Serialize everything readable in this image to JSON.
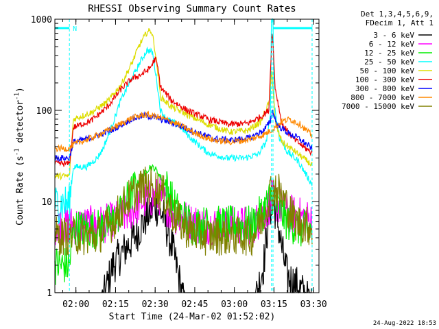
{
  "chart_data": {
    "type": "line",
    "title": "RHESSI Observing Summary Count Rates",
    "xlabel": "Start Time (24-Mar-02 01:52:02)",
    "ylabel_parts": [
      "Count Rate (s",
      "-1",
      " detector",
      "-1",
      ")"
    ],
    "y_scale": "log",
    "ylim": [
      1,
      1000
    ],
    "x_minutes_since_start_range": [
      0,
      100
    ],
    "x_ticks": [
      {
        "label": "02:00",
        "minute": 7.97
      },
      {
        "label": "02:15",
        "minute": 22.97
      },
      {
        "label": "02:30",
        "minute": 37.97
      },
      {
        "label": "02:45",
        "minute": 52.97
      },
      {
        "label": "03:00",
        "minute": 67.97
      },
      {
        "label": "03:15",
        "minute": 82.97
      },
      {
        "label": "03:30",
        "minute": 97.97
      }
    ],
    "y_ticks": [
      {
        "label": "1",
        "value": 1
      },
      {
        "label": "10",
        "value": 10
      },
      {
        "label": "100",
        "value": 100
      },
      {
        "label": "1000",
        "value": 1000
      }
    ],
    "legend_header": [
      "Det 1,3,4,5,6,9,",
      "FDecim 1, Att 1"
    ],
    "flag_label": "N",
    "flag_segments": [
      [
        0,
        5.5
      ],
      [
        82.5,
        97.5
      ]
    ],
    "dashed_verticals": [
      5.5,
      82.0,
      82.6,
      97.4
    ],
    "footer_timestamp": "24-Aug-2022 18:53",
    "series": [
      {
        "name": "3 - 6 keV",
        "color": "#000000",
        "points": [
          [
            0,
            0
          ],
          [
            5.5,
            0
          ],
          [
            16,
            0
          ],
          [
            22,
            2
          ],
          [
            30,
            4
          ],
          [
            35,
            7
          ],
          [
            38,
            9
          ],
          [
            41,
            7
          ],
          [
            44,
            3.5
          ],
          [
            46,
            2
          ],
          [
            50,
            0
          ],
          [
            74,
            0
          ],
          [
            79,
            2
          ],
          [
            81,
            7
          ],
          [
            82.5,
            10
          ],
          [
            84,
            7
          ],
          [
            86,
            3
          ],
          [
            88,
            1.5
          ],
          [
            93,
            1.1
          ],
          [
            97.4,
            0.7
          ]
        ]
      },
      {
        "name": "6 - 12 keV",
        "color": "#ff00ff",
        "points": [
          [
            0,
            5.5
          ],
          [
            5.5,
            5.5
          ],
          [
            16,
            5.5
          ],
          [
            22,
            6
          ],
          [
            28,
            7.5
          ],
          [
            33,
            10
          ],
          [
            37,
            11
          ],
          [
            40,
            11.5
          ],
          [
            44,
            7.5
          ],
          [
            48,
            6.5
          ],
          [
            55,
            5.5
          ],
          [
            75,
            5.5
          ],
          [
            79,
            7
          ],
          [
            82.2,
            10.5
          ],
          [
            84,
            9.5
          ],
          [
            88,
            7.5
          ],
          [
            93,
            6.8
          ],
          [
            97.5,
            6.2
          ]
        ]
      },
      {
        "name": "12 - 25 keV",
        "color": "#00ee00",
        "points": [
          [
            0,
            2
          ],
          [
            5.5,
            2
          ],
          [
            7,
            5
          ],
          [
            16,
            5
          ],
          [
            22,
            6
          ],
          [
            28,
            11
          ],
          [
            33,
            19
          ],
          [
            36,
            24
          ],
          [
            38,
            23
          ],
          [
            42,
            15
          ],
          [
            46,
            8
          ],
          [
            52,
            5.5
          ],
          [
            75,
            5.5
          ],
          [
            79,
            8
          ],
          [
            82.2,
            12
          ],
          [
            84,
            9
          ],
          [
            88,
            6
          ],
          [
            93,
            5
          ],
          [
            97.5,
            4.8
          ]
        ]
      },
      {
        "name": "25 - 50 keV",
        "color": "#00ffff",
        "points": [
          [
            0,
            9.5
          ],
          [
            5.5,
            9.5
          ],
          [
            7,
            24
          ],
          [
            12,
            24
          ],
          [
            16,
            30
          ],
          [
            18,
            37
          ],
          [
            21,
            60
          ],
          [
            25,
            130
          ],
          [
            29,
            220
          ],
          [
            33,
            370
          ],
          [
            35,
            460
          ],
          [
            37,
            430
          ],
          [
            38.5,
            220
          ],
          [
            40,
            100
          ],
          [
            42,
            82
          ],
          [
            47,
            68
          ],
          [
            52,
            48
          ],
          [
            58,
            34
          ],
          [
            65,
            30
          ],
          [
            72,
            30
          ],
          [
            77,
            33
          ],
          [
            80,
            45
          ],
          [
            81.6,
            85
          ],
          [
            82,
            1000
          ],
          [
            82.6,
            1000
          ],
          [
            83,
            120
          ],
          [
            85,
            50
          ],
          [
            88,
            35
          ],
          [
            92,
            28
          ],
          [
            96,
            18
          ],
          [
            97.5,
            15
          ]
        ]
      },
      {
        "name": "50 - 100 keV",
        "color": "#dddd00",
        "points": [
          [
            0,
            19
          ],
          [
            5.5,
            19
          ],
          [
            7,
            80
          ],
          [
            14,
            95
          ],
          [
            20,
            125
          ],
          [
            25,
            190
          ],
          [
            29,
            320
          ],
          [
            32,
            520
          ],
          [
            35,
            730
          ],
          [
            36.5,
            750
          ],
          [
            37.5,
            560
          ],
          [
            39,
            260
          ],
          [
            40,
            140
          ],
          [
            44,
            110
          ],
          [
            50,
            90
          ],
          [
            58,
            70
          ],
          [
            66,
            58
          ],
          [
            73,
            60
          ],
          [
            78,
            75
          ],
          [
            81,
            120
          ],
          [
            82.2,
            270
          ],
          [
            83.5,
            70
          ],
          [
            86,
            45
          ],
          [
            90,
            37
          ],
          [
            94,
            30
          ],
          [
            97.5,
            25
          ]
        ]
      },
      {
        "name": "100 - 300 keV",
        "color": "#ee0000",
        "points": [
          [
            0,
            26
          ],
          [
            5.5,
            26
          ],
          [
            7,
            65
          ],
          [
            14,
            78
          ],
          [
            20,
            110
          ],
          [
            25,
            170
          ],
          [
            29,
            220
          ],
          [
            33,
            250
          ],
          [
            36,
            290
          ],
          [
            38,
            370
          ],
          [
            39,
            290
          ],
          [
            40,
            180
          ],
          [
            44,
            130
          ],
          [
            50,
            100
          ],
          [
            58,
            80
          ],
          [
            66,
            70
          ],
          [
            73,
            72
          ],
          [
            78,
            85
          ],
          [
            81,
            100
          ],
          [
            82.3,
            780
          ],
          [
            83.4,
            180
          ],
          [
            86,
            70
          ],
          [
            90,
            50
          ],
          [
            94,
            40
          ],
          [
            97.5,
            34
          ]
        ]
      },
      {
        "name": "300 - 800 keV",
        "color": "#0000ff",
        "points": [
          [
            0,
            30
          ],
          [
            5.5,
            30
          ],
          [
            7,
            45
          ],
          [
            14,
            50
          ],
          [
            22,
            62
          ],
          [
            29,
            80
          ],
          [
            34,
            88
          ],
          [
            39,
            82
          ],
          [
            46,
            70
          ],
          [
            53,
            58
          ],
          [
            60,
            49
          ],
          [
            67,
            47
          ],
          [
            74,
            50
          ],
          [
            79,
            60
          ],
          [
            81.5,
            75
          ],
          [
            82.5,
            100
          ],
          [
            84,
            70
          ],
          [
            88,
            57
          ],
          [
            92,
            50
          ],
          [
            97.5,
            38
          ]
        ]
      },
      {
        "name": "800 - 7000 keV",
        "color": "#ff8800",
        "points": [
          [
            0,
            38
          ],
          [
            5.5,
            38
          ],
          [
            7,
            42
          ],
          [
            14,
            50
          ],
          [
            22,
            64
          ],
          [
            29,
            82
          ],
          [
            34,
            90
          ],
          [
            39,
            85
          ],
          [
            46,
            72
          ],
          [
            53,
            56
          ],
          [
            60,
            47
          ],
          [
            67,
            45
          ],
          [
            74,
            48
          ],
          [
            79,
            54
          ],
          [
            82.5,
            62
          ],
          [
            86,
            76
          ],
          [
            89,
            80
          ],
          [
            93,
            70
          ],
          [
            97.5,
            52
          ]
        ]
      },
      {
        "name": "7000 - 15000 keV",
        "color": "#808000",
        "points": [
          [
            0,
            4.2
          ],
          [
            5.5,
            4.2
          ],
          [
            16,
            4.2
          ],
          [
            22,
            6
          ],
          [
            27,
            10
          ],
          [
            33,
            14.5
          ],
          [
            37,
            15
          ],
          [
            41,
            12
          ],
          [
            45,
            7
          ],
          [
            50,
            5
          ],
          [
            56,
            4.2
          ],
          [
            75,
            4.2
          ],
          [
            79,
            7
          ],
          [
            82,
            14
          ],
          [
            84,
            14
          ],
          [
            87,
            10
          ],
          [
            91,
            6
          ],
          [
            97.5,
            5.2
          ]
        ]
      }
    ]
  }
}
